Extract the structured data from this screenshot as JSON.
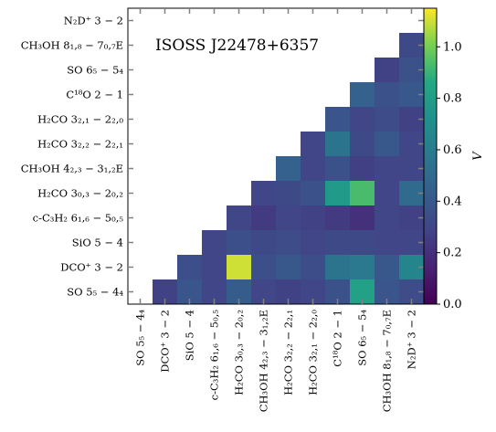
{
  "chart_data": {
    "type": "heatmap",
    "title": "",
    "annotation": "ISOSS J22478+6357",
    "row_labels": [
      "N₂D⁺ 3 − 2",
      "CH₃OH 8₁,₈ − 7₀,₇E",
      "SO 6₅ − 5₄",
      "C¹⁸O 2 − 1",
      "H₂CO 3₂,₁ − 2₂,₀",
      "H₂CO 3₂,₂ − 2₂,₁",
      "CH₃OH 4₂,₃ − 3₁,₂E",
      "H₂CO 3₀,₃ − 2₀,₂",
      "c-C₃H₂ 6₁,₆ − 5₀,₅",
      "SiO 5 − 4",
      "DCO⁺ 3 − 2",
      "SO 5₅ − 4₄"
    ],
    "col_labels": [
      "SO 5₅ − 4₄",
      "DCO⁺ 3 − 2",
      "SiO 5 − 4",
      "c-C₃H₂ 6₁,₆ − 5₀,₅",
      "H₂CO 3₀,₃ − 2₀,₂",
      "CH₃OH 4₂,₃ − 3₁,₂E",
      "H₂CO 3₂,₂ − 2₂,₁",
      "H₂CO 3₂,₁ − 2₂,₀",
      "C¹⁸O 2 − 1",
      "SO 6₅ − 5₄",
      "CH₃OH 8₁,₈ − 7₀,₇E",
      "N₂D⁺ 3 − 2"
    ],
    "values": [
      [
        null,
        null,
        null,
        null,
        null,
        null,
        null,
        null,
        null,
        null,
        null,
        null
      ],
      [
        null,
        null,
        null,
        null,
        null,
        null,
        null,
        null,
        null,
        null,
        null,
        0.32
      ],
      [
        null,
        null,
        null,
        null,
        null,
        null,
        null,
        null,
        null,
        null,
        0.28,
        0.36
      ],
      [
        null,
        null,
        null,
        null,
        null,
        null,
        null,
        null,
        null,
        0.45,
        0.36,
        0.4
      ],
      [
        null,
        null,
        null,
        null,
        null,
        null,
        null,
        null,
        0.38,
        0.3,
        0.33,
        0.28
      ],
      [
        null,
        null,
        null,
        null,
        null,
        null,
        null,
        0.3,
        0.55,
        0.32,
        0.4,
        0.3
      ],
      [
        null,
        null,
        null,
        null,
        null,
        null,
        0.45,
        0.3,
        0.36,
        0.27,
        0.3,
        0.3
      ],
      [
        null,
        null,
        null,
        null,
        null,
        0.3,
        0.32,
        0.36,
        0.78,
        0.93,
        0.3,
        0.5
      ],
      [
        null,
        null,
        null,
        null,
        0.3,
        0.25,
        0.3,
        0.28,
        0.25,
        0.2,
        0.3,
        0.28
      ],
      [
        null,
        null,
        null,
        0.3,
        0.35,
        0.32,
        0.33,
        0.3,
        0.32,
        0.32,
        0.3,
        0.3
      ],
      [
        null,
        null,
        0.35,
        0.3,
        1.1,
        0.35,
        0.4,
        0.34,
        0.55,
        0.58,
        0.4,
        0.65
      ],
      [
        null,
        0.28,
        0.38,
        0.3,
        0.42,
        0.3,
        0.28,
        0.3,
        0.36,
        0.82,
        0.38,
        0.33
      ]
    ],
    "colorbar": {
      "label": "V",
      "range": [
        0.0,
        1.15
      ],
      "ticks": [
        0.0,
        0.2,
        0.4,
        0.6,
        0.8,
        1.0
      ],
      "tick_labels": [
        "0.0",
        "0.2",
        "0.4",
        "0.6",
        "0.8",
        "1.0"
      ],
      "colormap": "viridis"
    },
    "grid": false
  }
}
